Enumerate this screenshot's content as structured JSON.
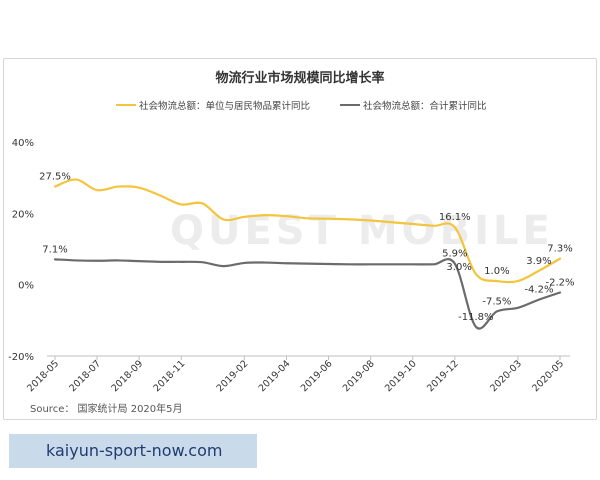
{
  "chart_data": {
    "type": "line",
    "title": "物流行业市场规模同比增长率",
    "source": "Source： 国家统计局 2020年5月",
    "watermark": "QUEST MOBILE",
    "ylim": [
      -20,
      40
    ],
    "yticks": [
      "-20%",
      "0%",
      "20%",
      "40%"
    ],
    "grid": false,
    "legend_position": "top-center",
    "colors": {
      "yellow": "#f2c53d",
      "gray": "#6b6b6b"
    },
    "x": [
      "2018-05",
      "2018-06",
      "2018-07",
      "2018-08",
      "2018-09",
      "2018-10",
      "2018-11",
      "2018-12",
      "2019-01",
      "2019-02",
      "2019-03",
      "2019-04",
      "2019-05",
      "2019-06",
      "2019-07",
      "2019-08",
      "2019-09",
      "2019-10",
      "2019-11",
      "2019-12",
      "2020-01",
      "2020-02",
      "2020-03",
      "2020-04",
      "2020-05"
    ],
    "xtick_labels": [
      "2018-05",
      "2018-07",
      "2018-09",
      "2018-11",
      "2019-02",
      "2019-04",
      "2019-06",
      "2019-08",
      "2019-10",
      "2019-12",
      "2020-03",
      "2020-05"
    ],
    "xtick_index": [
      0,
      2,
      4,
      6,
      9,
      11,
      13,
      15,
      17,
      19,
      22,
      24
    ],
    "series": [
      {
        "name": "社会物流总额：单位与居民物品累计同比",
        "color": "#f2c53d",
        "values": [
          27.5,
          29.5,
          26.5,
          27.5,
          27.2,
          25,
          22.5,
          22.8,
          18.3,
          19,
          19.5,
          19.2,
          18.6,
          18.5,
          18.3,
          18,
          17.5,
          17,
          16.5,
          16.1,
          3.0,
          1.0,
          1.0,
          3.9,
          7.3
        ],
        "labels": [
          {
            "i": 0,
            "text": "27.5%",
            "pos": "above"
          },
          {
            "i": 19,
            "text": "16.1%",
            "pos": "above"
          },
          {
            "i": 20,
            "text": "3.0%",
            "pos": "left"
          },
          {
            "i": 21,
            "text": "1.0%",
            "pos": "above"
          },
          {
            "i": 23,
            "text": "3.9%",
            "pos": "above"
          },
          {
            "i": 24,
            "text": "7.3%",
            "pos": "above"
          }
        ]
      },
      {
        "name": "社会物流总额：合计累计同比",
        "color": "#6b6b6b",
        "values": [
          7.1,
          6.8,
          6.7,
          6.8,
          6.6,
          6.4,
          6.4,
          6.3,
          5.2,
          6.1,
          6.2,
          6.0,
          5.9,
          5.8,
          5.7,
          5.7,
          5.7,
          5.7,
          5.7,
          5.9,
          -11.8,
          -7.5,
          -6.5,
          -4.2,
          -2.2
        ],
        "labels": [
          {
            "i": 0,
            "text": "7.1%",
            "pos": "above"
          },
          {
            "i": 19,
            "text": "5.9%",
            "pos": "above"
          },
          {
            "i": 20,
            "text": "-11.8%",
            "pos": "above"
          },
          {
            "i": 21,
            "text": "-7.5%",
            "pos": "above"
          },
          {
            "i": 23,
            "text": "-4.2%",
            "pos": "above"
          },
          {
            "i": 24,
            "text": "-2.2%",
            "pos": "above"
          }
        ]
      }
    ]
  },
  "footer": {
    "link_text": "kaiyun-sport-now.com"
  }
}
